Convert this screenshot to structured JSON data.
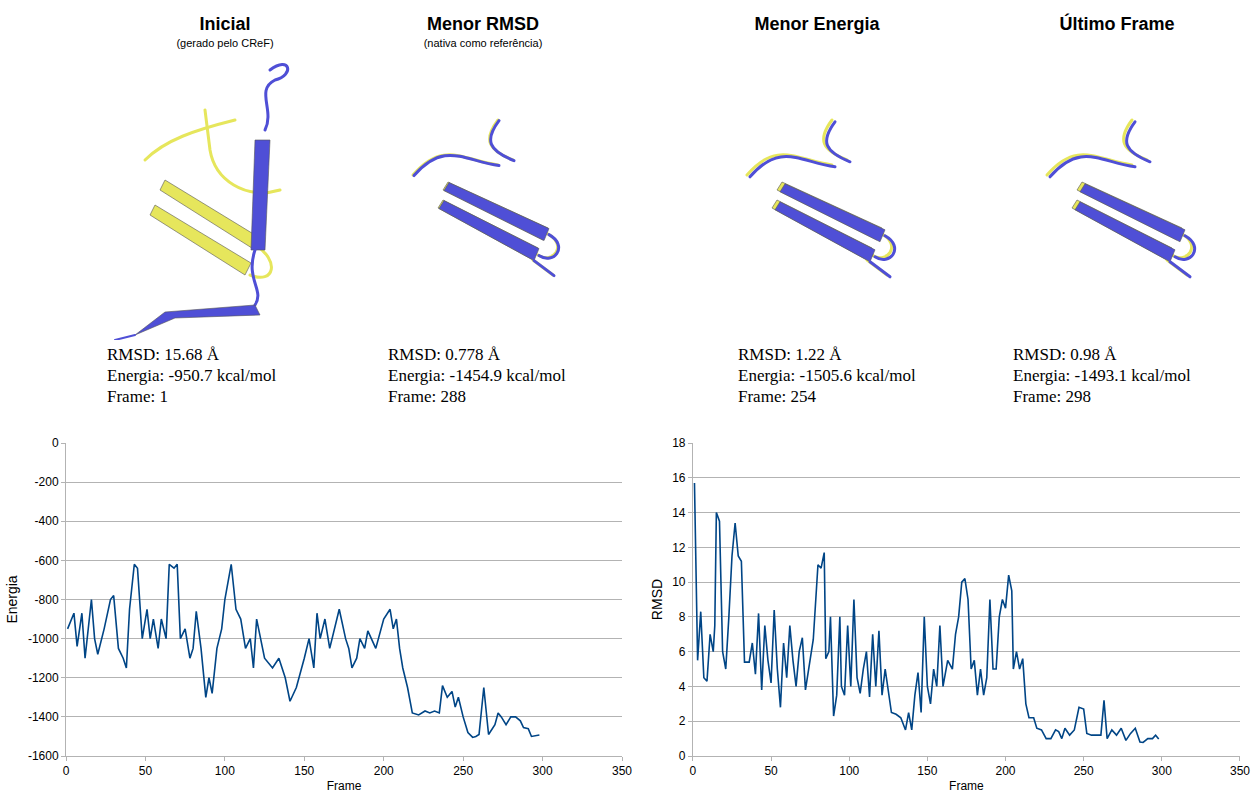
{
  "panels": [
    {
      "title": "Inicial",
      "subtitle": "(gerado pelo CReF)",
      "lines": [
        "RMSD: 15.68 Å",
        "Energia: -950.7 kcal/mol",
        "Frame: 1"
      ]
    },
    {
      "title": "Menor RMSD",
      "subtitle": "(nativa como referência)",
      "lines": [
        "RMSD: 0.778 Å",
        "Energia: -1454.9 kcal/mol",
        "Frame: 288"
      ]
    },
    {
      "title": "Menor Energia",
      "lines": [
        "RMSD: 1.22 Å",
        "Energia: -1505.6 kcal/mol",
        "Frame: 254"
      ]
    },
    {
      "title": "Último Frame",
      "lines": [
        "RMSD: 0.98 Å",
        "Energia: -1493.1 kcal/mol",
        "Frame: 298"
      ]
    }
  ],
  "chart_data": [
    {
      "type": "line",
      "x_label": "Frame",
      "y_label": "Energia",
      "color": "#004586",
      "grid": true,
      "x": [
        1,
        5,
        7,
        10,
        12,
        16,
        18,
        20,
        24,
        28,
        30,
        33,
        36,
        38,
        40,
        43,
        45,
        48,
        51,
        53,
        55,
        58,
        60,
        63,
        65,
        68,
        70,
        72,
        75,
        78,
        80,
        82,
        85,
        88,
        90,
        92,
        95,
        98,
        100,
        104,
        107,
        110,
        113,
        116,
        118,
        120,
        125,
        130,
        134,
        138,
        141,
        145,
        150,
        153,
        156,
        158,
        160,
        163,
        166,
        169,
        172,
        176,
        178,
        180,
        183,
        185,
        188,
        190,
        195,
        200,
        204,
        206,
        208,
        210,
        212,
        215,
        218,
        222,
        226,
        229,
        232,
        235,
        237,
        240,
        243,
        245,
        247,
        250,
        253,
        256,
        258,
        260,
        263,
        266,
        270,
        272,
        274,
        277,
        280,
        283,
        286,
        288,
        291,
        293,
        298
      ],
      "values": [
        -950,
        -870,
        -1040,
        -870,
        -1100,
        -800,
        -1000,
        -1080,
        -950,
        -800,
        -780,
        -1050,
        -1100,
        -1150,
        -850,
        -620,
        -640,
        -1000,
        -850,
        -1000,
        -900,
        -1050,
        -900,
        -1000,
        -620,
        -640,
        -620,
        -1000,
        -950,
        -1100,
        -1050,
        -860,
        -1050,
        -1300,
        -1200,
        -1280,
        -1050,
        -950,
        -800,
        -620,
        -850,
        -900,
        -1050,
        -1000,
        -1150,
        -900,
        -1100,
        -1150,
        -1100,
        -1200,
        -1320,
        -1250,
        -1100,
        -1000,
        -1150,
        -870,
        -1000,
        -900,
        -1050,
        -950,
        -850,
        -1000,
        -1050,
        -1150,
        -1100,
        -1000,
        -1050,
        -960,
        -1050,
        -900,
        -850,
        -950,
        -900,
        -1050,
        -1150,
        -1250,
        -1380,
        -1390,
        -1370,
        -1380,
        -1370,
        -1380,
        -1240,
        -1300,
        -1270,
        -1350,
        -1300,
        -1400,
        -1480,
        -1505,
        -1500,
        -1490,
        -1250,
        -1490,
        -1440,
        -1380,
        -1400,
        -1440,
        -1400,
        -1400,
        -1420,
        -1455,
        -1460,
        -1500,
        -1493
      ],
      "xlim": [
        0,
        350
      ],
      "xticks": [
        0,
        50,
        100,
        150,
        200,
        250,
        300,
        350
      ],
      "ylim": [
        -1600,
        0
      ],
      "yticks": [
        -1600,
        -1400,
        -1200,
        -1000,
        -800,
        -600,
        -400,
        -200,
        0
      ]
    },
    {
      "type": "line",
      "x_label": "Frame",
      "y_label": "RMSD",
      "color": "#004586",
      "grid": true,
      "x": [
        1,
        3,
        5,
        7,
        9,
        11,
        13,
        14,
        15,
        17,
        19,
        21,
        23,
        25,
        27,
        29,
        31,
        33,
        36,
        38,
        40,
        42,
        44,
        46,
        48,
        50,
        52,
        54,
        56,
        58,
        60,
        62,
        64,
        66,
        68,
        70,
        72,
        74,
        77,
        80,
        82,
        84,
        85,
        87,
        88,
        90,
        92,
        94,
        95,
        97,
        99,
        101,
        103,
        105,
        107,
        109,
        111,
        113,
        115,
        117,
        119,
        121,
        123,
        127,
        130,
        133,
        136,
        138,
        140,
        142,
        144,
        146,
        148,
        150,
        152,
        154,
        156,
        158,
        160,
        163,
        166,
        168,
        170,
        172,
        174,
        176,
        178,
        180,
        182,
        184,
        186,
        188,
        190,
        192,
        194,
        196,
        198,
        200,
        202,
        204,
        205,
        207,
        209,
        211,
        213,
        215,
        218,
        220,
        223,
        226,
        229,
        232,
        234,
        236,
        238,
        241,
        244,
        247,
        250,
        252,
        255,
        258,
        261,
        263,
        265,
        268,
        271,
        274,
        277,
        280,
        283,
        286,
        288,
        291,
        294,
        296,
        298
      ],
      "values": [
        15.7,
        5.5,
        8.3,
        4.5,
        4.3,
        7,
        6,
        7.5,
        14,
        13.5,
        6,
        5,
        8,
        11.5,
        13.4,
        11.5,
        11.2,
        5.4,
        5.4,
        6.5,
        4.7,
        8.2,
        3.8,
        7.5,
        5.5,
        4.2,
        8.4,
        5,
        2.8,
        6.5,
        4.5,
        7.5,
        5.5,
        4,
        6,
        6.8,
        3.8,
        5,
        6.7,
        11,
        10.8,
        11.7,
        5.6,
        6,
        8,
        2.3,
        3.5,
        8,
        4,
        3.5,
        7.5,
        4,
        9,
        4.5,
        3.6,
        5,
        6,
        3.4,
        7,
        4,
        7.2,
        3.5,
        5,
        2.5,
        2.4,
        2.2,
        1.5,
        2.5,
        1.5,
        3.5,
        4.8,
        2.5,
        8,
        4,
        3,
        5,
        4,
        7.5,
        4,
        5.5,
        5,
        7,
        8,
        10,
        10.2,
        9,
        5,
        5.5,
        3.5,
        5,
        3.5,
        4.5,
        9,
        5,
        5,
        8,
        9,
        8.5,
        10.4,
        9.5,
        5,
        6,
        5,
        5.6,
        3,
        2.2,
        2.2,
        1.6,
        1.5,
        1,
        1,
        1.5,
        1.4,
        1,
        1.6,
        1.2,
        1.5,
        2.8,
        2.7,
        1.3,
        1.2,
        1.2,
        1.2,
        3.2,
        1,
        1.5,
        1.2,
        1.6,
        0.9,
        1.3,
        1.6,
        0.8,
        0.78,
        1,
        1,
        1.2,
        0.98
      ],
      "xlim": [
        0,
        350
      ],
      "xticks": [
        0,
        50,
        100,
        150,
        200,
        250,
        300,
        350
      ],
      "ylim": [
        0,
        18
      ],
      "yticks": [
        0,
        2,
        4,
        6,
        8,
        10,
        12,
        14,
        16,
        18
      ]
    }
  ]
}
